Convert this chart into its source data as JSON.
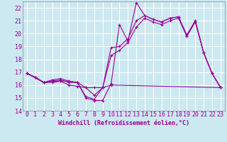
{
  "bg_color": "#cce8f0",
  "grid_color": "#ffffff",
  "line_color": "#990099",
  "spine_color": "#888899",
  "xlabel": "Windchill (Refroidissement éolien,°C)",
  "xlim": [
    -0.5,
    23.5
  ],
  "ylim": [
    14,
    22.5
  ],
  "yticks": [
    14,
    15,
    16,
    17,
    18,
    19,
    20,
    21,
    22
  ],
  "xticks": [
    0,
    1,
    2,
    3,
    4,
    5,
    6,
    7,
    8,
    9,
    10,
    11,
    12,
    13,
    14,
    15,
    16,
    17,
    18,
    19,
    20,
    21,
    22,
    23
  ],
  "series1_x": [
    0,
    1,
    2,
    3,
    4,
    5,
    6,
    7,
    8,
    9,
    10,
    11,
    12,
    13,
    14,
    15,
    16,
    17,
    18,
    19,
    20,
    21,
    22,
    23
  ],
  "series1_y": [
    16.9,
    16.6,
    16.2,
    16.4,
    16.5,
    16.3,
    16.2,
    15.0,
    14.8,
    14.8,
    16.1,
    20.7,
    19.4,
    22.4,
    21.4,
    21.1,
    20.9,
    21.2,
    21.3,
    19.8,
    21.0,
    18.5,
    16.9,
    15.8
  ],
  "series2_x": [
    0,
    1,
    2,
    3,
    4,
    5,
    6,
    7,
    8,
    9,
    10,
    11,
    12,
    13,
    14,
    15,
    16,
    17,
    18,
    19,
    20,
    21,
    22,
    23
  ],
  "series2_y": [
    16.9,
    16.6,
    16.2,
    16.3,
    16.4,
    16.2,
    16.2,
    15.1,
    14.9,
    15.8,
    18.9,
    19.0,
    19.6,
    21.0,
    21.4,
    21.1,
    20.9,
    21.2,
    21.3,
    19.9,
    21.0,
    18.5,
    16.9,
    15.8
  ],
  "series3_x": [
    0,
    2,
    3,
    4,
    5,
    6,
    7,
    8,
    9,
    10,
    11,
    12,
    13,
    14,
    15,
    16,
    17,
    18,
    19,
    20,
    21,
    22,
    23
  ],
  "series3_y": [
    16.9,
    16.2,
    16.3,
    16.3,
    16.0,
    15.9,
    15.8,
    15.2,
    15.8,
    18.3,
    18.7,
    19.3,
    20.5,
    21.2,
    20.9,
    20.7,
    21.0,
    21.2,
    19.8,
    20.9,
    18.5,
    16.9,
    15.8
  ],
  "series4_x": [
    0,
    1,
    2,
    3,
    4,
    5,
    6,
    7,
    8,
    9,
    10,
    23
  ],
  "series4_y": [
    16.9,
    16.6,
    16.2,
    16.2,
    16.3,
    16.3,
    16.2,
    15.8,
    15.8,
    15.8,
    16.0,
    15.8
  ],
  "tick_fontsize": 6.0,
  "xlabel_fontsize": 6.0,
  "marker_size": 3,
  "lw": 0.8
}
